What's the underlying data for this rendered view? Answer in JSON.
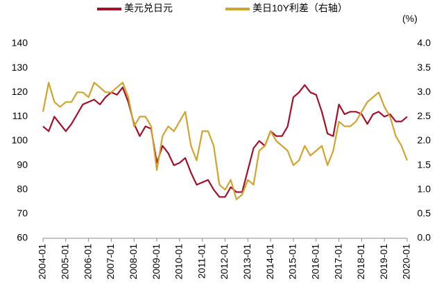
{
  "chart_data": {
    "type": "line",
    "x": [
      "2004-01",
      "2004-04",
      "2004-07",
      "2004-10",
      "2005-01",
      "2005-04",
      "2005-07",
      "2005-10",
      "2006-01",
      "2006-04",
      "2006-07",
      "2006-10",
      "2007-01",
      "2007-04",
      "2007-07",
      "2007-10",
      "2008-01",
      "2008-04",
      "2008-07",
      "2008-10",
      "2009-01",
      "2009-04",
      "2009-07",
      "2009-10",
      "2010-01",
      "2010-04",
      "2010-07",
      "2010-10",
      "2011-01",
      "2011-04",
      "2011-07",
      "2011-10",
      "2012-01",
      "2012-04",
      "2012-07",
      "2012-10",
      "2013-01",
      "2013-04",
      "2013-07",
      "2013-10",
      "2014-01",
      "2014-04",
      "2014-07",
      "2014-10",
      "2015-01",
      "2015-04",
      "2015-07",
      "2015-10",
      "2016-01",
      "2016-04",
      "2016-07",
      "2016-10",
      "2017-01",
      "2017-04",
      "2017-07",
      "2017-10",
      "2018-01",
      "2018-04",
      "2018-07",
      "2018-10",
      "2019-01",
      "2019-04",
      "2019-07",
      "2019-10",
      "2020-01"
    ],
    "series": [
      {
        "name": "美元兑日元",
        "color": "#a50e28",
        "axis": "y",
        "values": [
          106,
          104,
          110,
          107,
          104,
          107,
          111,
          115,
          116,
          117,
          115,
          118,
          120,
          119,
          122,
          116,
          107,
          102,
          106,
          105,
          91,
          98,
          95,
          90,
          91,
          93,
          87,
          82,
          83,
          84,
          80,
          77,
          77,
          81,
          79,
          79,
          88,
          97,
          100,
          98,
          104,
          102,
          102,
          106,
          118,
          120,
          123,
          120,
          119,
          112,
          103,
          102,
          115,
          111,
          112,
          112,
          111,
          107,
          111,
          112,
          110,
          111,
          108,
          108,
          110
        ]
      },
      {
        "name": "美日10Y利差（右轴）",
        "color": "#d1a32b",
        "axis": "y2",
        "values": [
          2.6,
          3.2,
          2.8,
          2.7,
          2.8,
          2.8,
          3.0,
          3.0,
          2.9,
          3.2,
          3.1,
          3.0,
          3.0,
          3.1,
          3.2,
          2.9,
          2.3,
          2.5,
          2.5,
          2.3,
          1.4,
          2.1,
          2.3,
          2.2,
          2.4,
          2.6,
          1.9,
          1.6,
          2.2,
          2.2,
          1.9,
          1.1,
          1.0,
          1.2,
          0.8,
          0.9,
          1.2,
          1.1,
          1.8,
          1.9,
          2.2,
          2.0,
          1.9,
          1.8,
          1.5,
          1.6,
          1.9,
          1.7,
          1.8,
          1.9,
          1.5,
          1.8,
          2.4,
          2.3,
          2.3,
          2.4,
          2.6,
          2.8,
          2.9,
          3.0,
          2.7,
          2.5,
          2.1,
          1.9,
          1.6
        ]
      }
    ],
    "annotation": "(%)",
    "ylim": [
      60,
      140
    ],
    "yticks": [
      60,
      70,
      80,
      90,
      100,
      110,
      120,
      130,
      140
    ],
    "y2lim": [
      0,
      4
    ],
    "y2ticks": [
      {
        "value": 0,
        "label": "0.0"
      },
      {
        "value": 0.5,
        "label": "0.5"
      },
      {
        "value": 1,
        "label": "1.0"
      },
      {
        "value": 1.5,
        "label": "1.5"
      },
      {
        "value": 2,
        "label": "2.0"
      },
      {
        "value": 2.5,
        "label": "2.5"
      },
      {
        "value": 3,
        "label": "3.0"
      },
      {
        "value": 3.5,
        "label": "3.5"
      },
      {
        "value": 4,
        "label": "4.0"
      }
    ],
    "xticks": [
      "2004-01",
      "2005-01",
      "2006-01",
      "2007-01",
      "2008-01",
      "2009-01",
      "2010-01",
      "2011-01",
      "2012-01",
      "2013-01",
      "2014-01",
      "2015-01",
      "2016-01",
      "2017-01",
      "2018-01",
      "2019-01",
      "2020-01"
    ],
    "grid": false,
    "legend": "top"
  }
}
